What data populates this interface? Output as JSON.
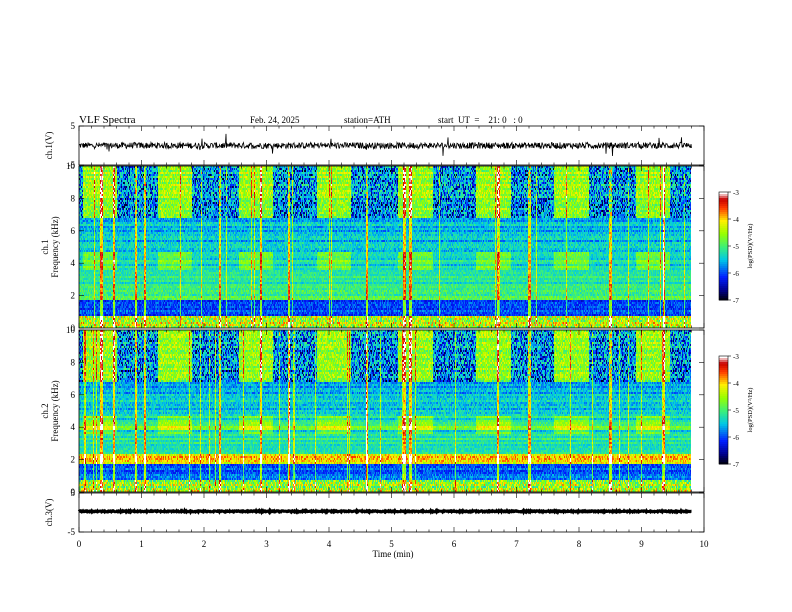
{
  "header": {
    "title": "VLF  Spectra",
    "date": "Feb. 24, 2025",
    "station": "station=ATH",
    "start_ut": "start  UT  =    21: 0   : 0"
  },
  "chart_data": [
    {
      "type": "line",
      "id": "ch1",
      "ylabel": "ch.1(V)",
      "ylim": [
        -5,
        5
      ],
      "yticks": [
        "5",
        "-5"
      ],
      "baseline": 0,
      "noise_amplitude": 0.8
    },
    {
      "type": "heatmap",
      "id": "spec1",
      "ylabel": "ch.1\nFrequency  (kHz)",
      "ylabel_top": "ch.1",
      "ylabel_bottom": "Frequency  (kHz)",
      "ylim": [
        0,
        10
      ],
      "yticks": [
        "0",
        "2",
        "4",
        "6",
        "8",
        "10"
      ],
      "colorbar": {
        "label": "log(PSD)(V²/Hz)",
        "range": [
          -7,
          -3
        ],
        "ticks": [
          "-3",
          "-4",
          "-5",
          "-6",
          "-7"
        ]
      },
      "burst_times_min": [
        0.05,
        1.25,
        2.55,
        3.8,
        5.1,
        6.35,
        7.6,
        8.9
      ],
      "burst_width_min": 0.55,
      "sferic_times_min": [
        0.35,
        0.55,
        0.9,
        1.05,
        2.25,
        2.9,
        3.35,
        4.6,
        5.2,
        5.3,
        6.7,
        7.2,
        8.5,
        9.35
      ]
    },
    {
      "type": "heatmap",
      "id": "spec2",
      "ylabel_top": "ch.2",
      "ylabel_bottom": "Frequency  (kHz)",
      "ylim": [
        0,
        10
      ],
      "yticks": [
        "0",
        "2",
        "4",
        "6",
        "8",
        "10"
      ],
      "colorbar": {
        "label": "log(PSD)(V²/Hz)",
        "range": [
          -7,
          -3
        ],
        "ticks": [
          "-3",
          "-4",
          "-5",
          "-6",
          "-7"
        ]
      },
      "burst_times_min": [
        0.05,
        1.25,
        2.55,
        3.8,
        5.1,
        6.35,
        7.6,
        8.9
      ],
      "burst_width_min": 0.55,
      "sferic_times_min": [
        0.35,
        0.55,
        0.9,
        1.05,
        2.25,
        2.9,
        3.35,
        4.6,
        5.2,
        5.3,
        6.7,
        7.2,
        8.5,
        9.35
      ]
    },
    {
      "type": "line",
      "id": "ch3",
      "ylabel": "ch.3(V)",
      "ylim": [
        -5,
        5
      ],
      "yticks": [
        "5",
        "-5"
      ],
      "baseline": 0.3,
      "noise_amplitude": 0.15
    }
  ],
  "xaxis": {
    "label": "Time  (min)",
    "xlim": [
      0,
      10
    ],
    "ticks": [
      "0",
      "1",
      "2",
      "3",
      "4",
      "5",
      "6",
      "7",
      "8",
      "9",
      "10"
    ],
    "data_end_min": 9.8
  }
}
